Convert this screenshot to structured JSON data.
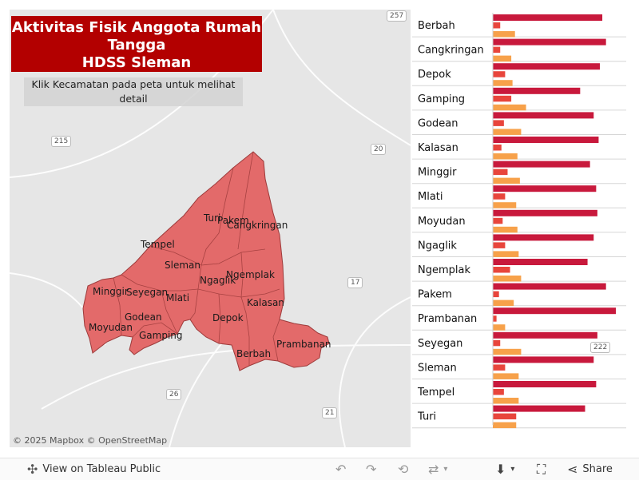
{
  "dashboard": {
    "title_lines": [
      "Aktivitas Fisik Anggota Rumah",
      "Tangga",
      "HDSS Sleman"
    ],
    "hint": "Klik Kecamatan pada peta untuk melihat detail",
    "attribution": "© 2025 Mapbox © OpenStreetMap"
  },
  "map": {
    "fill_color": "#e36a6a",
    "road_shields": [
      "257",
      "215",
      "20",
      "17",
      "26",
      "21",
      "222"
    ],
    "region_labels": [
      "Turi",
      "Pakem",
      "Cangkringan",
      "Tempel",
      "Sleman",
      "Ngaglik",
      "Ngemplak",
      "Minggir",
      "Seyegan",
      "Mlati",
      "Godean",
      "Moyudan",
      "Depok",
      "Kalasan",
      "Gamping",
      "Berbah",
      "Prambanan"
    ]
  },
  "chart_data": {
    "type": "bar",
    "orientation": "horizontal",
    "categories": [
      "Berbah",
      "Cangkringan",
      "Depok",
      "Gamping",
      "Godean",
      "Kalasan",
      "Minggir",
      "Mlati",
      "Moyudan",
      "Ngaglik",
      "Ngemplak",
      "Pakem",
      "Prambanan",
      "Seyegan",
      "Sleman",
      "Tempel",
      "Turi"
    ],
    "series": [
      {
        "color": "#c8193c",
        "values": [
          0.89,
          0.92,
          0.87,
          0.71,
          0.82,
          0.86,
          0.79,
          0.84,
          0.85,
          0.82,
          0.77,
          0.92,
          1.0,
          0.85,
          0.82,
          0.84,
          0.75
        ]
      },
      {
        "color": "#e8453c",
        "values": [
          0.06,
          0.06,
          0.1,
          0.15,
          0.09,
          0.07,
          0.12,
          0.1,
          0.08,
          0.1,
          0.14,
          0.05,
          0.03,
          0.06,
          0.1,
          0.09,
          0.19
        ]
      },
      {
        "color": "#f7a14a",
        "values": [
          0.18,
          0.15,
          0.16,
          0.27,
          0.23,
          0.2,
          0.22,
          0.19,
          0.2,
          0.21,
          0.23,
          0.17,
          0.1,
          0.23,
          0.21,
          0.21,
          0.19
        ]
      }
    ]
  },
  "toolbar": {
    "view_label": "View on Tableau Public",
    "share_label": "Share"
  }
}
